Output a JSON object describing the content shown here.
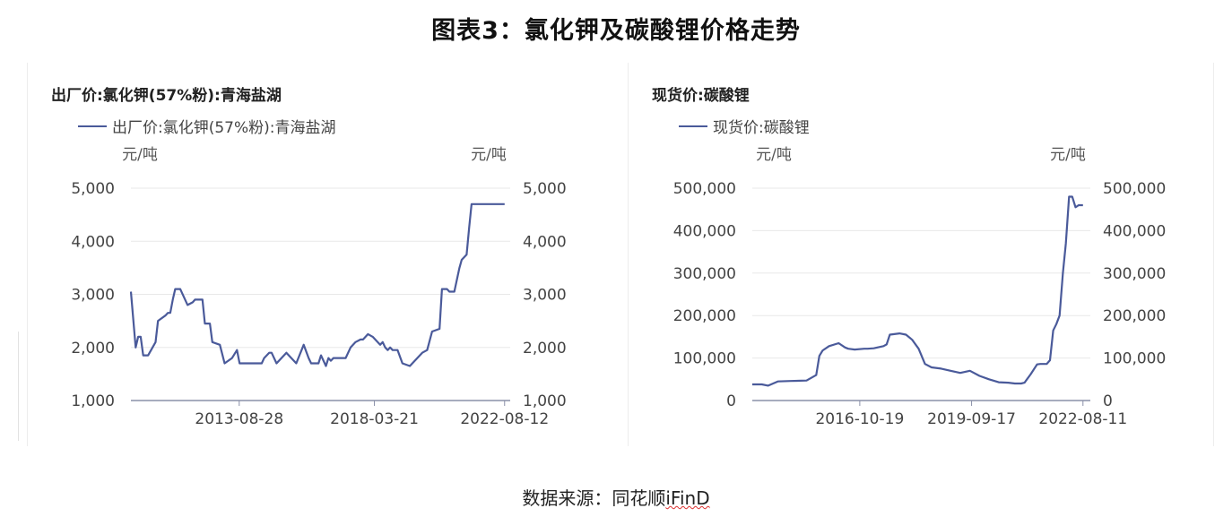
{
  "figure_title": "图表3：氯化钾及碳酸锂价格走势",
  "source": {
    "prefix": "数据来源：同花顺",
    "brand": "iFinD"
  },
  "colors": {
    "line": "#4a5a9a",
    "grid": "#e8e8e8",
    "axis": "#8a90a8"
  },
  "chart_data": [
    {
      "type": "line",
      "title": "出厂价:氯化钾(57%粉):青海盐湖",
      "legend": [
        "出厂价:氯化钾(57%粉):青海盐湖"
      ],
      "unit_left": "元/吨",
      "unit_right": "元/吨",
      "ylim": [
        1000,
        5000
      ],
      "yticks": [
        "5,000",
        "4,000",
        "3,000",
        "2,000",
        "1,000"
      ],
      "ytick_values": [
        5000,
        4000,
        3000,
        2000,
        1000
      ],
      "xlim": [
        "2010-01-01",
        "2022-10-20"
      ],
      "xticks": [
        "2013-08-28",
        "2018-03-21",
        "2022-08-12"
      ],
      "series": [
        {
          "name": "出厂价:氯化钾(57%粉):青海盐湖",
          "x": [
            "2010-01-01",
            "2010-03-01",
            "2010-04-01",
            "2010-05-01",
            "2010-06-01",
            "2010-08-01",
            "2010-11-01",
            "2010-12-01",
            "2011-03-01",
            "2011-04-01",
            "2011-05-01",
            "2011-06-01",
            "2011-07-01",
            "2011-09-01",
            "2011-12-01",
            "2012-02-01",
            "2012-03-01",
            "2012-06-01",
            "2012-07-01",
            "2012-09-01",
            "2012-10-01",
            "2013-01-01",
            "2013-03-01",
            "2013-06-01",
            "2013-08-01",
            "2013-09-01",
            "2014-06-01",
            "2014-07-01",
            "2014-09-01",
            "2014-10-01",
            "2014-12-01",
            "2015-04-01",
            "2015-06-01",
            "2015-08-01",
            "2015-11-01",
            "2016-01-01",
            "2016-02-01",
            "2016-05-01",
            "2016-06-01",
            "2016-08-01",
            "2016-09-01",
            "2016-10-01",
            "2016-11-01",
            "2017-04-01",
            "2017-06-01",
            "2017-08-01",
            "2017-10-01",
            "2017-11-01",
            "2018-01-01",
            "2018-03-01",
            "2018-06-01",
            "2018-07-01",
            "2018-08-01",
            "2018-09-01",
            "2018-10-01",
            "2018-11-01",
            "2019-01-01",
            "2019-03-01",
            "2019-06-01",
            "2019-09-01",
            "2019-11-01",
            "2020-01-01",
            "2020-03-01",
            "2020-06-01",
            "2020-07-01",
            "2020-09-01",
            "2020-10-01",
            "2020-12-01",
            "2021-02-01",
            "2021-03-01",
            "2021-04-01",
            "2021-05-01",
            "2021-06-01",
            "2021-07-01",
            "2021-08-01",
            "2021-09-01",
            "2021-11-01",
            "2021-12-01",
            "2022-01-01",
            "2022-02-01",
            "2022-03-01",
            "2022-04-01",
            "2022-05-01",
            "2022-06-01",
            "2022-07-01",
            "2022-08-12"
          ],
          "values": [
            3050,
            2000,
            2200,
            2200,
            1850,
            1850,
            2100,
            2500,
            2600,
            2650,
            2650,
            2900,
            3100,
            3100,
            2800,
            2850,
            2900,
            2900,
            2450,
            2450,
            2100,
            2050,
            1700,
            1800,
            1950,
            1700,
            1700,
            1800,
            1900,
            1900,
            1700,
            1900,
            1800,
            1700,
            2050,
            1800,
            1700,
            1700,
            1850,
            1650,
            1800,
            1750,
            1800,
            1800,
            2000,
            2100,
            2150,
            2150,
            2250,
            2200,
            2050,
            2100,
            2000,
            1950,
            2000,
            1950,
            1950,
            1700,
            1650,
            1800,
            1900,
            1950,
            2300,
            2350,
            3100,
            3100,
            3050,
            3050,
            3500,
            3650,
            3700,
            3750,
            4250,
            4700,
            4700,
            4700,
            4700,
            4700,
            4700,
            4700,
            4700,
            4700,
            4700,
            4700,
            4700,
            4700
          ]
        }
      ]
    },
    {
      "type": "line",
      "title": "现货价:碳酸锂",
      "legend": [
        "现货价:碳酸锂"
      ],
      "unit_left": "元/吨",
      "unit_right": "元/吨",
      "ylim": [
        0,
        500000
      ],
      "yticks": [
        "500,000",
        "400,000",
        "300,000",
        "200,000",
        "100,000",
        "0"
      ],
      "ytick_values": [
        500000,
        400000,
        300000,
        200000,
        100000,
        0
      ],
      "xlim": [
        "2014-01-01",
        "2022-10-20"
      ],
      "xticks": [
        "2016-10-19",
        "2019-09-17",
        "2022-08-11"
      ],
      "series": [
        {
          "name": "现货价:碳酸锂",
          "x": [
            "2014-01-01",
            "2014-04-01",
            "2014-06-01",
            "2014-09-01",
            "2015-01-01",
            "2015-06-01",
            "2015-09-01",
            "2015-10-01",
            "2015-11-01",
            "2016-01-01",
            "2016-04-01",
            "2016-06-01",
            "2016-07-01",
            "2016-09-01",
            "2016-12-01",
            "2017-01-01",
            "2017-03-01",
            "2017-06-01",
            "2017-07-01",
            "2017-08-01",
            "2017-11-01",
            "2018-01-01",
            "2018-03-01",
            "2018-05-01",
            "2018-07-01",
            "2018-09-01",
            "2018-12-01",
            "2019-03-01",
            "2019-06-01",
            "2019-09-01",
            "2019-12-01",
            "2020-03-01",
            "2020-06-01",
            "2020-09-01",
            "2020-11-01",
            "2021-01-01",
            "2021-02-01",
            "2021-04-01",
            "2021-06-01",
            "2021-07-01",
            "2021-08-01",
            "2021-09-01",
            "2021-10-01",
            "2021-11-01",
            "2021-12-01",
            "2022-01-01",
            "2022-02-01",
            "2022-03-01",
            "2022-04-01",
            "2022-05-01",
            "2022-06-01",
            "2022-07-01",
            "2022-08-11"
          ],
          "values": [
            38000,
            38000,
            35000,
            45000,
            46000,
            47000,
            60000,
            105000,
            118000,
            128000,
            135000,
            125000,
            122000,
            120000,
            122000,
            122000,
            123000,
            128000,
            132000,
            155000,
            158000,
            155000,
            143000,
            122000,
            86000,
            78000,
            75000,
            70000,
            65000,
            70000,
            58000,
            50000,
            43000,
            42000,
            40000,
            40000,
            42000,
            62000,
            85000,
            86000,
            86000,
            86000,
            95000,
            165000,
            180000,
            200000,
            300000,
            370000,
            480000,
            480000,
            455000,
            460000,
            460000
          ]
        }
      ]
    }
  ]
}
